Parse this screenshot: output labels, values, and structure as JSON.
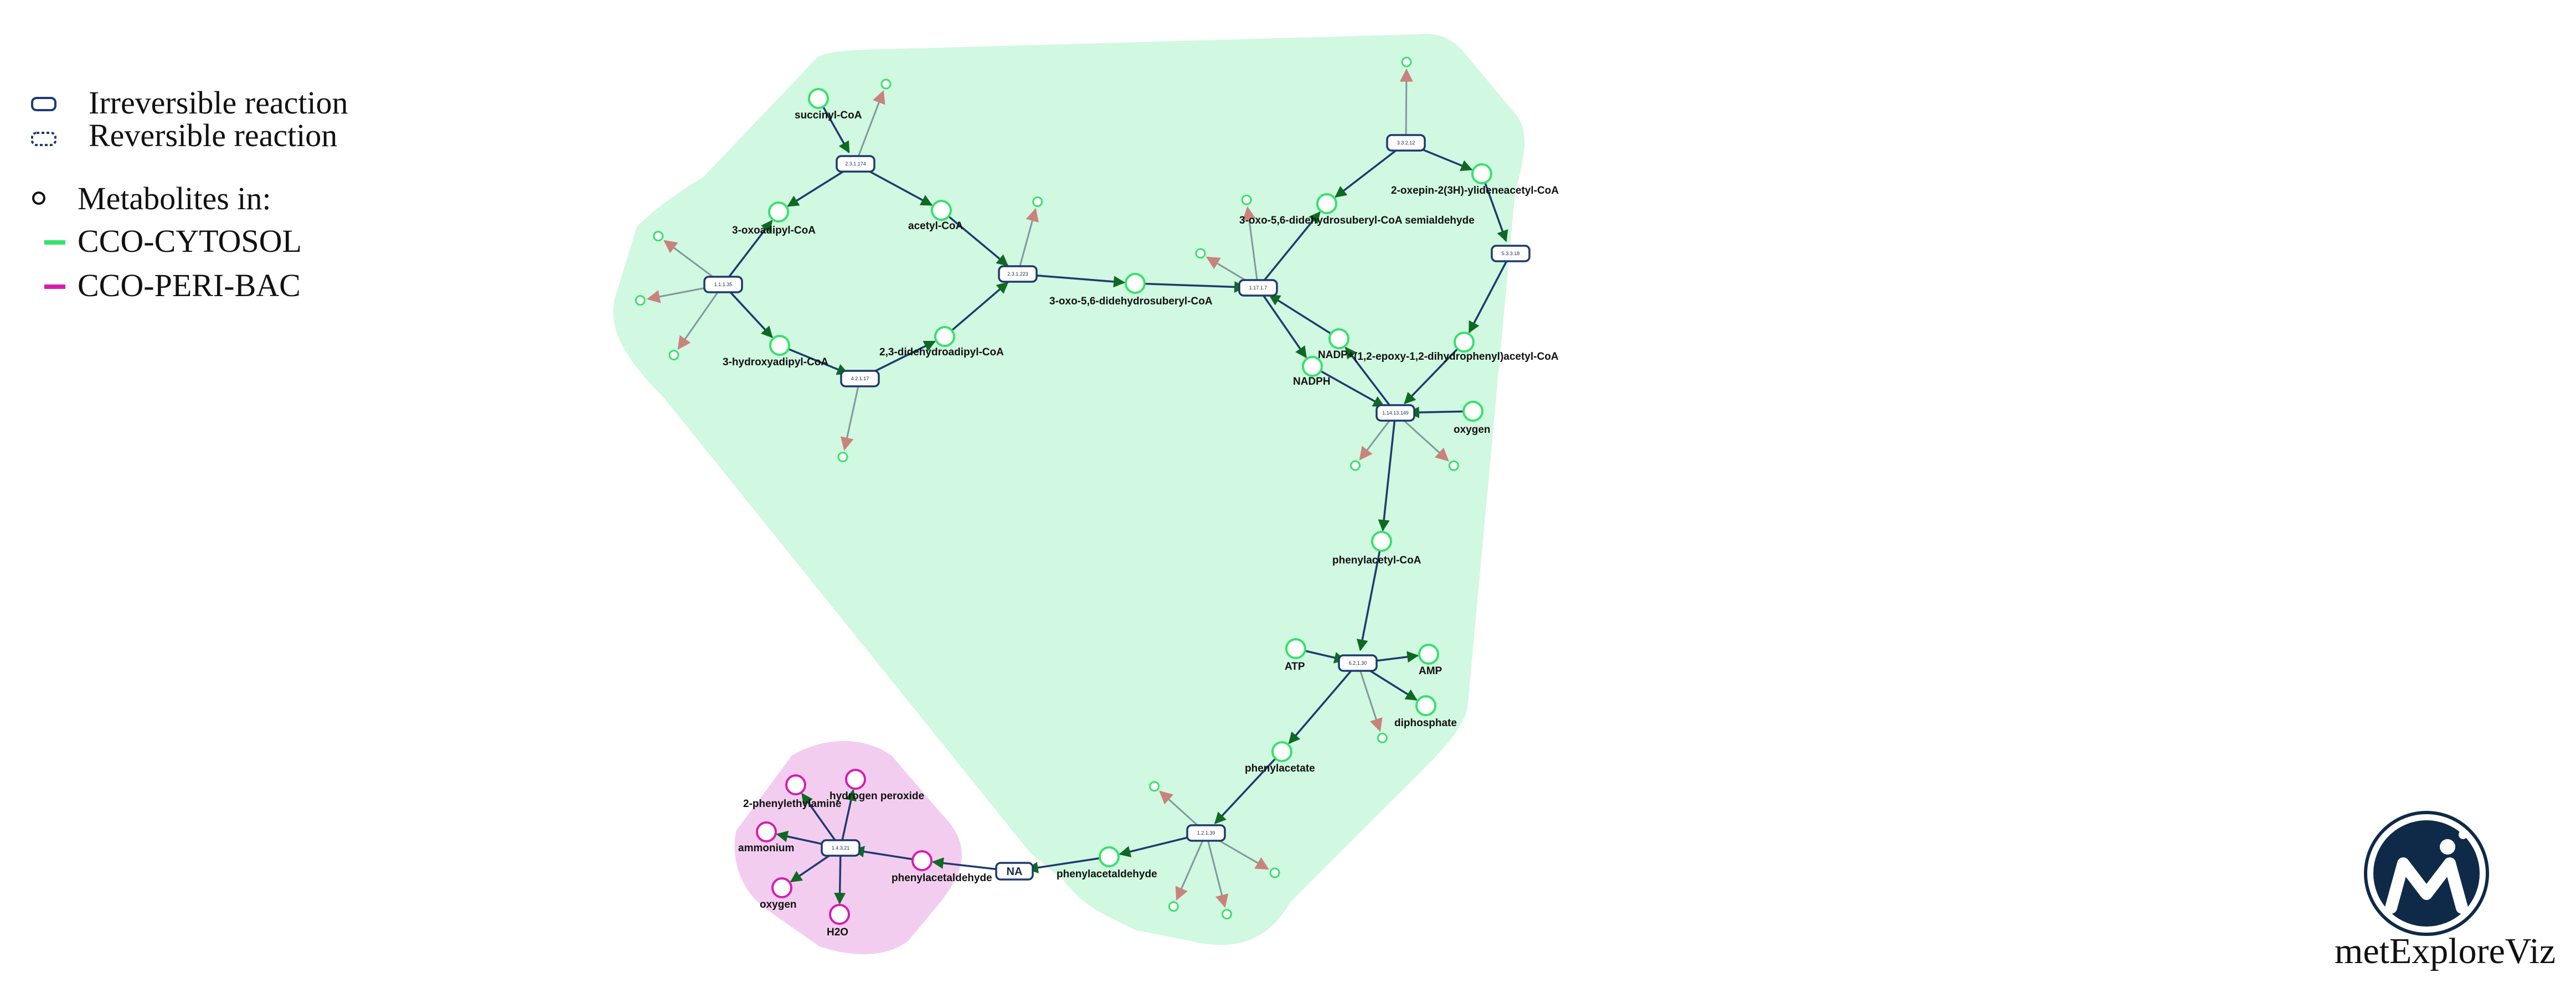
{
  "legend": {
    "irreversible": "Irreversible reaction",
    "reversible": "Reversible reaction",
    "metabolites_title": "Metabolites in:",
    "compartments": [
      {
        "name": "CCO-CYTOSOL",
        "color": "#33e36b"
      },
      {
        "name": "CCO-PERI-BAC",
        "color": "#d61cb0"
      }
    ]
  },
  "brand": {
    "name": "metExploreViz"
  },
  "colors": {
    "cytosol_fill": "#d1f8e0",
    "peribac_fill": "#f3cdef",
    "edge": "#1f3a6e",
    "side_edge": "#7f9a9a",
    "reaction_border": "#1f3a6e",
    "arrow": "#0e6a22",
    "arrow_in": "#8b0000",
    "side_arrow": "#c9837c"
  },
  "metabolites": [
    {
      "id": "succinyl",
      "label": "succinyl-CoA"
    },
    {
      "id": "oxoadipyl",
      "label": "3-oxoadipyl-CoA"
    },
    {
      "id": "acetyl",
      "label": "acetyl-CoA"
    },
    {
      "id": "hydroxyadipyl",
      "label": "3-hydroxyadipyl-CoA"
    },
    {
      "id": "didehydroadipyl",
      "label": "2,3-didehydroadipyl-CoA"
    },
    {
      "id": "oxodidehydrosuberyl",
      "label": "3-oxo-5,6-didehydrosuberyl-CoA"
    },
    {
      "id": "semialdehyde",
      "label": "3-oxo-5,6-didehydrosuberyl-CoA semialdehyde"
    },
    {
      "id": "oxepin",
      "label": "2-oxepin-2(3H)-ylideneacetyl-CoA"
    },
    {
      "id": "nadp",
      "label": "NADP+"
    },
    {
      "id": "nadph",
      "label": "NADPH"
    },
    {
      "id": "epoxy",
      "label": "(1,2-epoxy-1,2-dihydrophenyl)acetyl-CoA"
    },
    {
      "id": "oxygen_top",
      "label": "oxygen"
    },
    {
      "id": "phenylacetylcoa",
      "label": "phenylacetyl-CoA"
    },
    {
      "id": "atp",
      "label": "ATP"
    },
    {
      "id": "amp",
      "label": "AMP"
    },
    {
      "id": "diphosphate",
      "label": "diphosphate"
    },
    {
      "id": "phenylacetate",
      "label": "phenylacetate"
    },
    {
      "id": "phenylacetaldehyde_cyt",
      "label": "phenylacetaldehyde"
    },
    {
      "id": "phenylethylamine",
      "label": "2-phenylethylamine"
    },
    {
      "id": "h2o2",
      "label": "hydrogen peroxide"
    },
    {
      "id": "ammonium",
      "label": "ammonium"
    },
    {
      "id": "oxygen_peri",
      "label": "oxygen"
    },
    {
      "id": "h2o",
      "label": "H2O"
    },
    {
      "id": "phenylacetaldehyde_peri",
      "label": "phenylacetaldehyde"
    }
  ],
  "reactions": [
    {
      "id": "r1",
      "label": "2.3.1.174"
    },
    {
      "id": "r2",
      "label": "1.1.1.35"
    },
    {
      "id": "r3",
      "label": "4.2.1.17"
    },
    {
      "id": "r4",
      "label": "2.3.1.223"
    },
    {
      "id": "r5",
      "label": "1.17.1.7"
    },
    {
      "id": "r6",
      "label": "3.3.2.12"
    },
    {
      "id": "r7",
      "label": "5.3.3.18"
    },
    {
      "id": "r8",
      "label": "1.14.13.149"
    },
    {
      "id": "r9",
      "label": "6.2.1.30"
    },
    {
      "id": "r10",
      "label": "1.2.1.39"
    },
    {
      "id": "r11",
      "label": "1.4.3.21"
    },
    {
      "id": "na",
      "label": "NA"
    }
  ]
}
